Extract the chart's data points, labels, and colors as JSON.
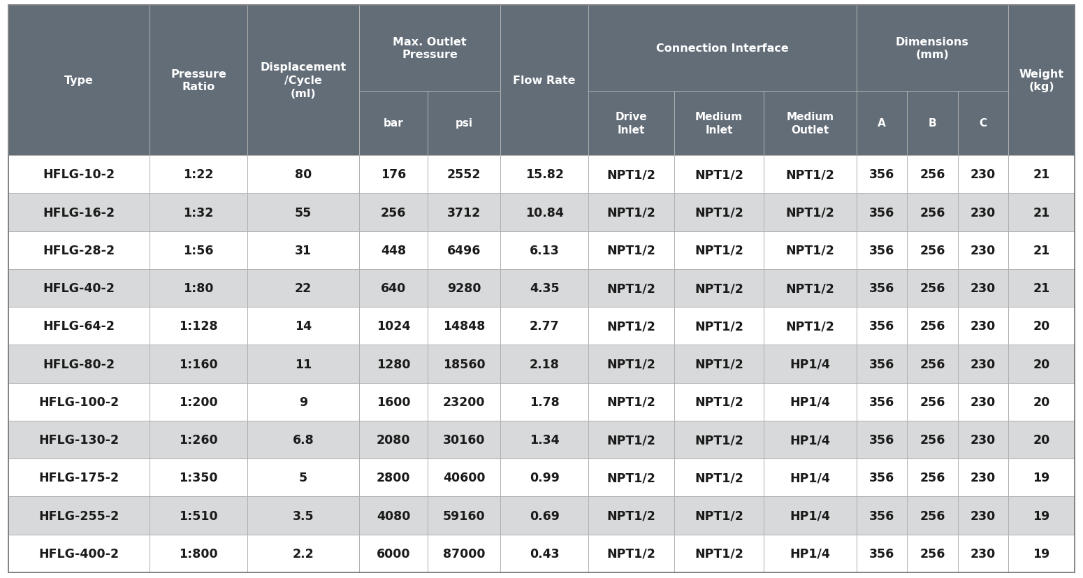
{
  "header_bg": "#636d78",
  "header_text": "#ffffff",
  "row_bg_white": "#ffffff",
  "row_bg_gray": "#d8d9da",
  "row_text": "#1a1a1a",
  "border_color": "#b0b0b0",
  "outer_border_color": "#888888",
  "data": [
    [
      "HFLG-10-2",
      "1:22",
      "80",
      "176",
      "2552",
      "15.82",
      "NPT1/2",
      "NPT1/2",
      "NPT1/2",
      "356",
      "256",
      "230",
      "21"
    ],
    [
      "HFLG-16-2",
      "1:32",
      "55",
      "256",
      "3712",
      "10.84",
      "NPT1/2",
      "NPT1/2",
      "NPT1/2",
      "356",
      "256",
      "230",
      "21"
    ],
    [
      "HFLG-28-2",
      "1:56",
      "31",
      "448",
      "6496",
      "6.13",
      "NPT1/2",
      "NPT1/2",
      "NPT1/2",
      "356",
      "256",
      "230",
      "21"
    ],
    [
      "HFLG-40-2",
      "1:80",
      "22",
      "640",
      "9280",
      "4.35",
      "NPT1/2",
      "NPT1/2",
      "NPT1/2",
      "356",
      "256",
      "230",
      "21"
    ],
    [
      "HFLG-64-2",
      "1:128",
      "14",
      "1024",
      "14848",
      "2.77",
      "NPT1/2",
      "NPT1/2",
      "NPT1/2",
      "356",
      "256",
      "230",
      "20"
    ],
    [
      "HFLG-80-2",
      "1:160",
      "11",
      "1280",
      "18560",
      "2.18",
      "NPT1/2",
      "NPT1/2",
      "HP1/4",
      "356",
      "256",
      "230",
      "20"
    ],
    [
      "HFLG-100-2",
      "1:200",
      "9",
      "1600",
      "23200",
      "1.78",
      "NPT1/2",
      "NPT1/2",
      "HP1/4",
      "356",
      "256",
      "230",
      "20"
    ],
    [
      "HFLG-130-2",
      "1:260",
      "6.8",
      "2080",
      "30160",
      "1.34",
      "NPT1/2",
      "NPT1/2",
      "HP1/4",
      "356",
      "256",
      "230",
      "20"
    ],
    [
      "HFLG-175-2",
      "1:350",
      "5",
      "2800",
      "40600",
      "0.99",
      "NPT1/2",
      "NPT1/2",
      "HP1/4",
      "356",
      "256",
      "230",
      "19"
    ],
    [
      "HFLG-255-2",
      "1:510",
      "3.5",
      "4080",
      "59160",
      "0.69",
      "NPT1/2",
      "NPT1/2",
      "HP1/4",
      "356",
      "256",
      "230",
      "19"
    ],
    [
      "HFLG-400-2",
      "1:800",
      "2.2",
      "6000",
      "87000",
      "0.43",
      "NPT1/2",
      "NPT1/2",
      "HP1/4",
      "356",
      "256",
      "230",
      "19"
    ]
  ],
  "col_widths_rel": [
    1.45,
    1.0,
    1.15,
    0.7,
    0.75,
    0.9,
    0.88,
    0.92,
    0.95,
    0.52,
    0.52,
    0.52,
    0.68
  ],
  "row_colors": [
    0,
    1,
    0,
    1,
    0,
    1,
    0,
    1,
    0,
    1,
    0
  ],
  "fig_width": 15.5,
  "fig_height": 8.28,
  "header_fontsize": 11.5,
  "data_fontsize": 12.5,
  "subheader_fontsize": 11.0
}
